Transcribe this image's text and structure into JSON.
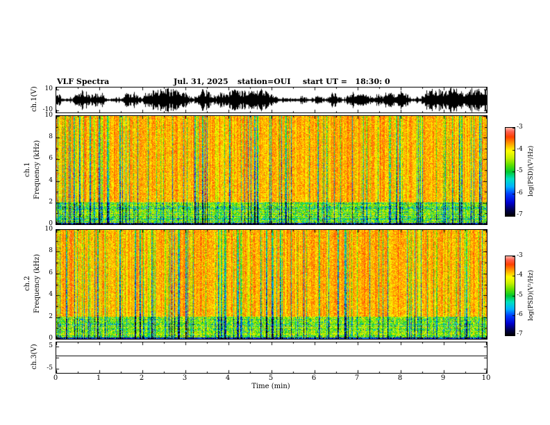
{
  "header": {
    "title": "VLF Spectra",
    "date": "Jul. 31, 2025",
    "station": "station=OUI",
    "start_ut": "start UT =   18:30: 0"
  },
  "labels": {
    "ch1v": "ch.1(V)",
    "ch1": "ch.1",
    "ch2": "ch.2",
    "freq": "Frequency (kHz)",
    "ch3v": "ch.3(V)",
    "time": "Time (min)",
    "psd": "log(PSD)(V²/Hz)"
  },
  "colors": {
    "background": "#ffffff",
    "axis": "#000000",
    "waveform": "#000000"
  },
  "chart_data": {
    "figure": "VLF quick-look plot: ch.1 waveform, ch.1 and ch.2 spectrograms, ch.3 flat channel vs time",
    "x": {
      "label": "Time (min)",
      "range": [
        0,
        10
      ],
      "ticks": [
        0,
        1,
        2,
        3,
        4,
        5,
        6,
        7,
        8,
        9,
        10
      ]
    },
    "panels": [
      {
        "id": "ch1_waveform",
        "type": "line",
        "ylabel": "ch.1(V)",
        "ylim": [
          -12,
          12
        ],
        "yticks": [
          10,
          -10
        ],
        "signal": "dense broadband audio-band noise, envelope repeatedly saturating near ±10 V for the full 10 minutes"
      },
      {
        "id": "ch1_spectrogram",
        "type": "heatmap",
        "ylabel": "ch.1 Frequency (kHz)",
        "ylim": [
          0,
          10
        ],
        "yticks": [
          0,
          2,
          4,
          6,
          8,
          10
        ],
        "zlabel": "log(PSD)(V²/Hz)",
        "zlim": [
          -7,
          -3
        ],
        "zticks": [
          -3,
          -4,
          -5,
          -6,
          -7
        ],
        "content": "broadband PSD near -3.5 (red/orange) across 0-10 kHz with dense vertical sferic striations dipping to -6/-7 (green, cyan, blue, black) and strong structured green/cyan/yellow banding below about 2 kHz with a dark line at 0 kHz"
      },
      {
        "id": "ch2_spectrogram",
        "type": "heatmap",
        "ylabel": "ch.2 Frequency (kHz)",
        "ylim": [
          0,
          10
        ],
        "yticks": [
          0,
          2,
          4,
          6,
          8,
          10
        ],
        "zlabel": "log(PSD)(V²/Hz)",
        "zlim": [
          -7,
          -3
        ],
        "zticks": [
          -3,
          -4,
          -5,
          -6,
          -7
        ],
        "content": "same character as ch.1: red/orange broadband PSD with vertical colored striations and green/blue structure below about 2 kHz"
      },
      {
        "id": "ch3_waveform",
        "type": "line",
        "ylabel": "ch.3(V)",
        "ylim": [
          -7,
          7
        ],
        "yticks": [
          5,
          -5
        ],
        "value_constant": 1,
        "signal": "flat constant line near +1 V for the entire record"
      }
    ],
    "colorscale": {
      "range": [
        -7,
        -3
      ],
      "ticks": [
        -3,
        -4,
        -5,
        -6,
        -7
      ],
      "stops": [
        [
          0.0,
          "#000005"
        ],
        [
          0.06,
          "#00004a"
        ],
        [
          0.15,
          "#0000d0"
        ],
        [
          0.25,
          "#0040ff"
        ],
        [
          0.33,
          "#00b0ff"
        ],
        [
          0.42,
          "#00e0c0"
        ],
        [
          0.5,
          "#00c830"
        ],
        [
          0.58,
          "#60e000"
        ],
        [
          0.66,
          "#c8f000"
        ],
        [
          0.74,
          "#ffff00"
        ],
        [
          0.82,
          "#ffa000"
        ],
        [
          0.9,
          "#ff4000"
        ],
        [
          0.96,
          "#ff6050"
        ],
        [
          1.0,
          "#ffb0a0"
        ]
      ]
    }
  }
}
